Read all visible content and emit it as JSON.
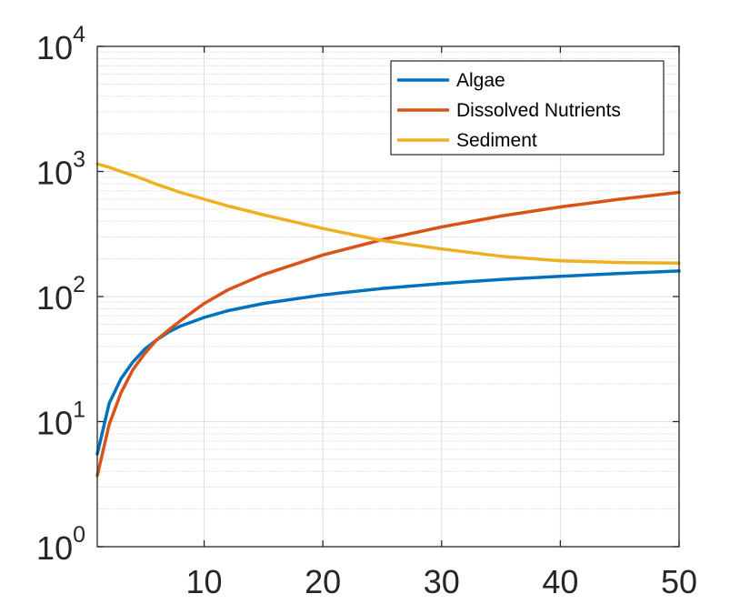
{
  "chart_data": {
    "type": "line",
    "title": "",
    "xlabel": "",
    "ylabel": "",
    "xlim": [
      1,
      50
    ],
    "ylim": [
      1,
      10000
    ],
    "yscale": "log",
    "grid": true,
    "minor_grid": true,
    "legend_position": "top-right",
    "x_ticks": [
      {
        "value": 10,
        "label": "10"
      },
      {
        "value": 20,
        "label": "20"
      },
      {
        "value": 30,
        "label": "30"
      },
      {
        "value": 40,
        "label": "40"
      },
      {
        "value": 50,
        "label": "50"
      }
    ],
    "y_ticks": [
      {
        "value": 1,
        "base": "10",
        "exp": "0"
      },
      {
        "value": 10,
        "base": "10",
        "exp": "1"
      },
      {
        "value": 100,
        "base": "10",
        "exp": "2"
      },
      {
        "value": 1000,
        "base": "10",
        "exp": "3"
      },
      {
        "value": 10000,
        "base": "10",
        "exp": "4"
      }
    ],
    "series": [
      {
        "name": "Algae",
        "color": "#0072BD",
        "x": [
          1,
          2,
          3,
          4,
          5,
          6,
          7,
          8,
          10,
          12,
          15,
          20,
          25,
          30,
          35,
          40,
          45,
          50
        ],
        "y": [
          5.5,
          14,
          22,
          30,
          38,
          45,
          52,
          58,
          68,
          77,
          88,
          103,
          116,
          127,
          137,
          145,
          153,
          160
        ]
      },
      {
        "name": "Dissolved Nutrients",
        "color": "#D95319",
        "x": [
          1,
          2,
          3,
          4,
          5,
          6,
          7,
          8,
          10,
          12,
          15,
          20,
          25,
          30,
          35,
          40,
          45,
          50
        ],
        "y": [
          3.7,
          9.5,
          17,
          26,
          35,
          45,
          54,
          64,
          88,
          113,
          150,
          215,
          285,
          360,
          440,
          520,
          600,
          680
        ]
      },
      {
        "name": "Sediment",
        "color": "#EDB120",
        "x": [
          1,
          2,
          3,
          4,
          5,
          6,
          8,
          10,
          12,
          15,
          20,
          25,
          30,
          35,
          40,
          45,
          50
        ],
        "y": [
          1150,
          1080,
          1000,
          930,
          860,
          790,
          680,
          600,
          530,
          450,
          350,
          280,
          240,
          210,
          193,
          187,
          185
        ]
      }
    ]
  }
}
